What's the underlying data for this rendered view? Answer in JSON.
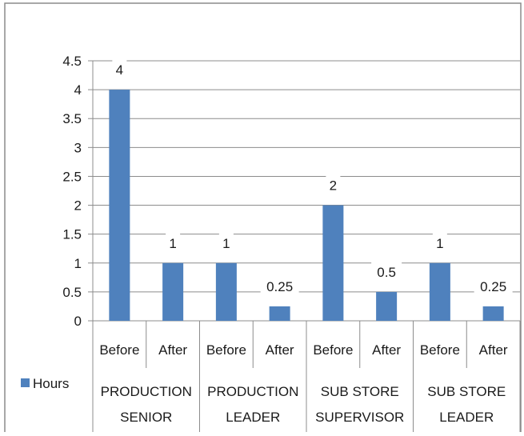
{
  "chart_data": {
    "type": "bar",
    "title": "",
    "xlabel": "",
    "ylabel": "",
    "ylim": [
      0,
      4.5
    ],
    "ytick_step": 0.5,
    "ytick_labels": [
      "0",
      "0.5",
      "1",
      "1.5",
      "2",
      "2.5",
      "3",
      "3.5",
      "4",
      "4.5"
    ],
    "grid": true,
    "legend_position": "left-bottom",
    "bar_color": "#4f81bd",
    "series": [
      {
        "name": "Hours",
        "values": [
          4,
          1,
          1,
          0.25,
          2,
          0.5,
          1,
          0.25
        ],
        "data_labels": [
          "4",
          "1",
          "1",
          "0.25",
          "2",
          "0.5",
          "1",
          "0.25"
        ]
      }
    ],
    "categories": [
      "Before",
      "After",
      "Before",
      "After",
      "Before",
      "After",
      "Before",
      "After"
    ],
    "groups": [
      {
        "label_lines": [
          "PRODUCTION",
          "SENIOR"
        ]
      },
      {
        "label_lines": [
          "PRODUCTION",
          "LEADER"
        ]
      },
      {
        "label_lines": [
          "SUB STORE",
          "SUPERVISOR"
        ]
      },
      {
        "label_lines": [
          "SUB STORE",
          "LEADER"
        ]
      }
    ]
  }
}
